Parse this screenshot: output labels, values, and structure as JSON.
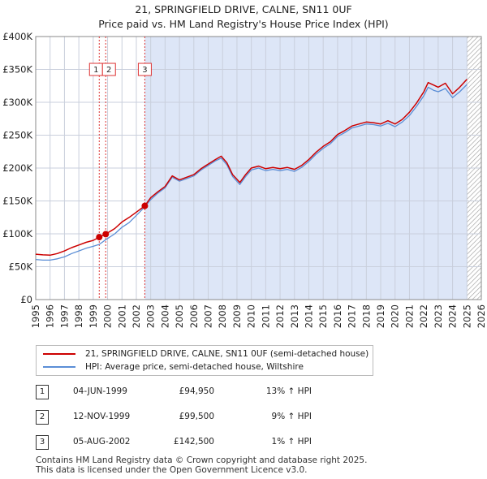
{
  "header": {
    "title": "21, SPRINGFIELD DRIVE, CALNE, SN11 0UF",
    "subtitle": "Price paid vs. HM Land Registry's House Price Index (HPI)"
  },
  "colors": {
    "property_line": "#cc0000",
    "hpi_line": "#5b8ed6",
    "shade": "#dde6f7",
    "grid": "#c9cfdc",
    "sale_marker_line": "#dd3333"
  },
  "chart_data": {
    "type": "line",
    "xlim": [
      1995,
      2026
    ],
    "ylim": [
      0,
      400000
    ],
    "x_ticks": [
      "1995",
      "1996",
      "1997",
      "1998",
      "1999",
      "2000",
      "2001",
      "2002",
      "2003",
      "2004",
      "2005",
      "2006",
      "2007",
      "2008",
      "2009",
      "2010",
      "2011",
      "2012",
      "2013",
      "2014",
      "2015",
      "2016",
      "2017",
      "2018",
      "2019",
      "2020",
      "2021",
      "2022",
      "2023",
      "2024",
      "2025",
      "2026"
    ],
    "y_ticks": [
      {
        "value": 0,
        "label": "£0"
      },
      {
        "value": 50000,
        "label": "£50K"
      },
      {
        "value": 100000,
        "label": "£100K"
      },
      {
        "value": 150000,
        "label": "£150K"
      },
      {
        "value": 200000,
        "label": "£200K"
      },
      {
        "value": 250000,
        "label": "£250K"
      },
      {
        "value": 300000,
        "label": "£300K"
      },
      {
        "value": 350000,
        "label": "£350K"
      },
      {
        "value": 400000,
        "label": "£400K"
      }
    ],
    "grid": true,
    "shaded_from": 2002.59,
    "hatched_from": 2025.0,
    "series": [
      {
        "name": "21, SPRINGFIELD DRIVE, CALNE, SN11 0UF (semi-detached house)",
        "x": [
          1995,
          1995.5,
          1996,
          1996.5,
          1997,
          1997.5,
          1998,
          1998.5,
          1999,
          1999.42,
          1999.87,
          2000.5,
          2001,
          2001.5,
          2002,
          2002.59,
          2003,
          2003.5,
          2004,
          2004.5,
          2005,
          2005.5,
          2006,
          2006.5,
          2007,
          2007.5,
          2007.9,
          2008.3,
          2008.7,
          2009.2,
          2009.6,
          2010,
          2010.5,
          2011,
          2011.5,
          2012,
          2012.5,
          2013,
          2013.5,
          2014,
          2014.5,
          2015,
          2015.5,
          2016,
          2016.5,
          2017,
          2017.5,
          2018,
          2018.5,
          2019,
          2019.5,
          2020,
          2020.5,
          2021,
          2021.5,
          2022,
          2022.3,
          2022.7,
          2023,
          2023.5,
          2024,
          2024.5,
          2025
        ],
        "y": [
          69000,
          68000,
          67500,
          70000,
          74000,
          79000,
          83000,
          87000,
          90000,
          94950,
          99500,
          108000,
          118000,
          125000,
          133000,
          142500,
          155000,
          164000,
          172000,
          188000,
          182000,
          186000,
          190000,
          199000,
          206000,
          213000,
          218000,
          208000,
          190000,
          178000,
          190000,
          200000,
          203000,
          199000,
          201000,
          199000,
          201000,
          198000,
          204000,
          213000,
          224000,
          233000,
          240000,
          251000,
          257000,
          264000,
          267000,
          270000,
          269000,
          267000,
          272000,
          267000,
          274000,
          285000,
          299000,
          316000,
          330000,
          326000,
          323000,
          329000,
          313000,
          323000,
          335000
        ]
      },
      {
        "name": "HPI: Average price, semi-detached house, Wiltshire",
        "x": [
          1995,
          1995.5,
          1996,
          1996.5,
          1997,
          1997.5,
          1998,
          1998.5,
          1999,
          1999.42,
          1999.87,
          2000.5,
          2001,
          2001.5,
          2002,
          2002.59,
          2003,
          2003.5,
          2004,
          2004.5,
          2005,
          2005.5,
          2006,
          2006.5,
          2007,
          2007.5,
          2007.9,
          2008.3,
          2008.7,
          2009.2,
          2009.6,
          2010,
          2010.5,
          2011,
          2011.5,
          2012,
          2012.5,
          2013,
          2013.5,
          2014,
          2014.5,
          2015,
          2015.5,
          2016,
          2016.5,
          2017,
          2017.5,
          2018,
          2018.5,
          2019,
          2019.5,
          2020,
          2020.5,
          2021,
          2021.5,
          2022,
          2022.3,
          2022.7,
          2023,
          2023.5,
          2024,
          2024.5,
          2025
        ],
        "y": [
          61000,
          60000,
          60000,
          62000,
          65000,
          70000,
          74000,
          78000,
          81000,
          84000,
          91000,
          100000,
          110000,
          117000,
          128000,
          141000,
          152000,
          162000,
          170000,
          186000,
          180000,
          184000,
          188000,
          197000,
          204000,
          211000,
          215000,
          205000,
          187000,
          175000,
          187000,
          197000,
          200000,
          196000,
          198000,
          196000,
          198000,
          195000,
          201000,
          210000,
          221000,
          230000,
          237000,
          248000,
          254000,
          261000,
          264000,
          267000,
          266000,
          264000,
          268000,
          263000,
          270000,
          280000,
          294000,
          310000,
          323000,
          318000,
          316000,
          321000,
          307000,
          316000,
          327000
        ]
      }
    ],
    "sales": [
      {
        "label": "1",
        "x": 1999.42,
        "y": 94950
      },
      {
        "label": "2",
        "x": 1999.87,
        "y": 99500
      },
      {
        "label": "3",
        "x": 2002.59,
        "y": 142500
      }
    ]
  },
  "legend": {
    "items": [
      {
        "label": "21, SPRINGFIELD DRIVE, CALNE, SN11 0UF (semi-detached house)"
      },
      {
        "label": "HPI: Average price, semi-detached house, Wiltshire"
      }
    ]
  },
  "transactions": [
    {
      "num": "1",
      "date": "04-JUN-1999",
      "price": "£94,950",
      "hpi": "13% ↑ HPI"
    },
    {
      "num": "2",
      "date": "12-NOV-1999",
      "price": "£99,500",
      "hpi": "9% ↑ HPI"
    },
    {
      "num": "3",
      "date": "05-AUG-2002",
      "price": "£142,500",
      "hpi": "1% ↑ HPI"
    }
  ],
  "footer": {
    "line1": "Contains HM Land Registry data © Crown copyright and database right 2025.",
    "line2": "This data is licensed under the Open Government Licence v3.0."
  }
}
